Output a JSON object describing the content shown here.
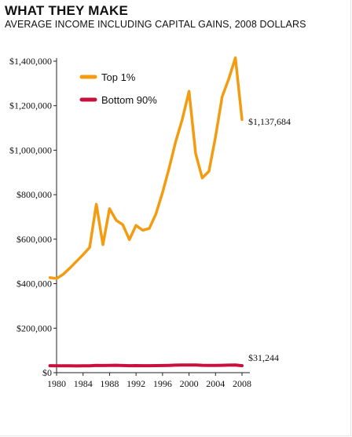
{
  "header": {
    "title": "WHAT THEY MAKE",
    "subtitle": "AVERAGE INCOME INCLUDING CAPITAL GAINS, 2008 DOLLARS"
  },
  "chart_data": {
    "type": "line",
    "title": "WHAT THEY MAKE",
    "subtitle": "AVERAGE INCOME INCLUDING CAPITAL GAINS, 2008 DOLLARS",
    "xlabel": "",
    "ylabel": "",
    "xlim": [
      1980,
      2008
    ],
    "ylim": [
      0,
      1400000
    ],
    "x_ticks": [
      1980,
      1984,
      1988,
      1992,
      1996,
      2000,
      2004,
      2008
    ],
    "x_tick_labels": [
      "1980",
      "1984",
      "1988",
      "1992",
      "1996",
      "2000",
      "2004",
      "2008"
    ],
    "y_ticks": [
      0,
      200000,
      400000,
      600000,
      800000,
      1000000,
      1200000,
      1400000
    ],
    "y_tick_labels": [
      "$0",
      "$200,000",
      "$400,000",
      "$600,000",
      "$800,000",
      "$1,000,000",
      "$1,200,000",
      "$1,400,000"
    ],
    "grid": false,
    "legend": "top-left",
    "x": [
      1979,
      1980,
      1981,
      1982,
      1983,
      1984,
      1985,
      1986,
      1987,
      1988,
      1989,
      1990,
      1991,
      1992,
      1993,
      1994,
      1995,
      1996,
      1997,
      1998,
      1999,
      2000,
      2001,
      2002,
      2003,
      2004,
      2005,
      2006,
      2007,
      2008
    ],
    "series": [
      {
        "name": "Top 1%",
        "color": "#f39c12",
        "values": [
          427000,
          423000,
          442000,
          470000,
          500000,
          530000,
          563000,
          757000,
          575000,
          737000,
          685000,
          665000,
          598000,
          662000,
          640000,
          648000,
          713000,
          810000,
          920000,
          1040000,
          1140000,
          1265000,
          985000,
          875000,
          905000,
          1060000,
          1240000,
          1320000,
          1415000,
          1137684
        ]
      },
      {
        "name": "Bottom 90%",
        "color": "#c8103e",
        "values": [
          31500,
          31000,
          30800,
          30600,
          30500,
          31000,
          31200,
          32500,
          32000,
          32800,
          33000,
          32000,
          31400,
          31600,
          31300,
          31400,
          31700,
          32200,
          32800,
          33800,
          34400,
          34700,
          34200,
          33300,
          32900,
          32900,
          33200,
          33700,
          34200,
          31244
        ]
      }
    ],
    "end_labels": [
      "$1,137,684",
      "$31,244"
    ]
  }
}
